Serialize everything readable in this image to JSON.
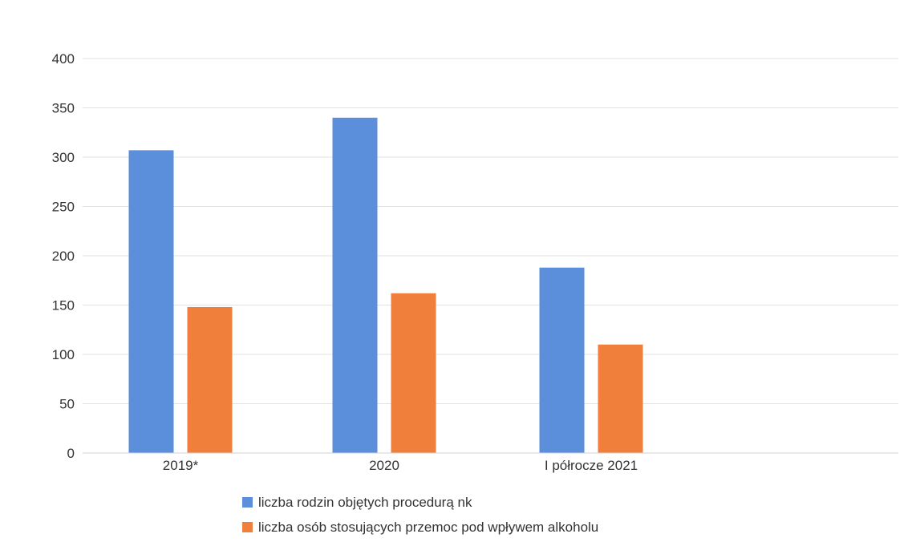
{
  "chart_data": {
    "type": "bar",
    "title": "",
    "xlabel": "",
    "ylabel": "",
    "categories": [
      "2019*",
      "2020",
      "I półrocze 2021"
    ],
    "series": [
      {
        "name": "liczba rodzin objętych procedurą nk",
        "values": [
          307,
          340,
          188
        ],
        "color": "#5B8EDB"
      },
      {
        "name": "liczba osób stosujących przemoc pod wpływem alkoholu",
        "values": [
          148,
          162,
          110
        ],
        "color": "#F07F3C"
      }
    ],
    "ylim": [
      0,
      400
    ],
    "yticks": [
      0,
      50,
      100,
      150,
      200,
      250,
      300,
      350,
      400
    ],
    "grid": true,
    "legend_position": "bottom"
  }
}
